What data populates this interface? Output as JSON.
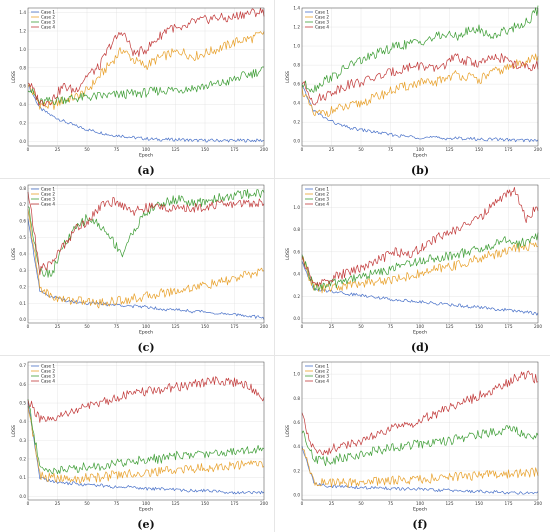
{
  "series_names": [
    "Case 1",
    "Case 2",
    "Case 3",
    "Case 4"
  ],
  "colors": [
    "#4a72c9",
    "#e8a12c",
    "#3f9e37",
    "#c23b3b"
  ],
  "xlabel": "Epoch",
  "ylabel": "LOSS",
  "chart_data": [
    {
      "type": "line",
      "caption": "(a)",
      "xlabel": "Epoch",
      "ylabel": "LOSS",
      "xlim": [
        0,
        200
      ],
      "ylim": [
        -0.05,
        1.45
      ],
      "xticks": [
        0,
        25,
        50,
        75,
        100,
        125,
        150,
        175,
        200
      ],
      "yticks": [
        0.0,
        0.2,
        0.4,
        0.6,
        0.8,
        1.0,
        1.2,
        1.4
      ],
      "grid": true,
      "legend": "top-left",
      "x": [
        0,
        10,
        20,
        30,
        40,
        50,
        60,
        70,
        80,
        90,
        100,
        110,
        120,
        130,
        140,
        150,
        160,
        170,
        180,
        190,
        200
      ],
      "series": [
        {
          "name": "Case 1",
          "values": [
            0.62,
            0.36,
            0.28,
            0.22,
            0.17,
            0.13,
            0.1,
            0.07,
            0.06,
            0.04,
            0.03,
            0.02,
            0.02,
            0.02,
            0.01,
            0.01,
            0.01,
            0.01,
            0.01,
            0.01,
            0.01
          ]
        },
        {
          "name": "Case 2",
          "values": [
            0.62,
            0.4,
            0.38,
            0.45,
            0.48,
            0.55,
            0.7,
            0.85,
            1.0,
            0.88,
            0.82,
            0.9,
            0.95,
            0.98,
            0.92,
            0.96,
            1.0,
            1.05,
            1.1,
            1.12,
            1.18
          ]
        },
        {
          "name": "Case 3",
          "values": [
            0.6,
            0.42,
            0.44,
            0.46,
            0.47,
            0.48,
            0.49,
            0.5,
            0.51,
            0.52,
            0.53,
            0.55,
            0.56,
            0.57,
            0.58,
            0.6,
            0.62,
            0.65,
            0.7,
            0.74,
            0.78
          ]
        },
        {
          "name": "Case 4",
          "values": [
            0.66,
            0.42,
            0.45,
            0.6,
            0.55,
            0.72,
            0.8,
            1.05,
            1.2,
            0.95,
            1.0,
            1.12,
            1.25,
            1.2,
            1.3,
            1.32,
            1.35,
            1.33,
            1.38,
            1.4,
            1.41
          ]
        }
      ]
    },
    {
      "type": "line",
      "caption": "(b)",
      "xlabel": "Epoch",
      "ylabel": "LOSS",
      "xlim": [
        0,
        200
      ],
      "ylim": [
        -0.05,
        1.4
      ],
      "xticks": [
        0,
        25,
        50,
        75,
        100,
        125,
        150,
        175,
        200
      ],
      "yticks": [
        0.0,
        0.2,
        0.4,
        0.6,
        0.8,
        1.0,
        1.2,
        1.4
      ],
      "grid": true,
      "legend": "top-left",
      "x": [
        0,
        10,
        20,
        30,
        40,
        50,
        60,
        70,
        80,
        90,
        100,
        110,
        120,
        130,
        140,
        150,
        160,
        170,
        180,
        190,
        200
      ],
      "series": [
        {
          "name": "Case 1",
          "values": [
            0.58,
            0.32,
            0.24,
            0.18,
            0.14,
            0.12,
            0.1,
            0.08,
            0.06,
            0.05,
            0.04,
            0.04,
            0.03,
            0.03,
            0.03,
            0.02,
            0.02,
            0.02,
            0.01,
            0.01,
            0.01
          ]
        },
        {
          "name": "Case 2",
          "values": [
            0.55,
            0.28,
            0.3,
            0.34,
            0.36,
            0.4,
            0.45,
            0.5,
            0.55,
            0.58,
            0.62,
            0.6,
            0.66,
            0.7,
            0.68,
            0.64,
            0.72,
            0.75,
            0.8,
            0.85,
            0.88
          ]
        },
        {
          "name": "Case 3",
          "values": [
            0.6,
            0.55,
            0.65,
            0.7,
            0.8,
            0.85,
            0.9,
            0.95,
            1.0,
            1.02,
            1.05,
            1.08,
            1.12,
            1.1,
            1.15,
            1.18,
            1.1,
            1.15,
            1.2,
            1.25,
            1.38
          ]
        },
        {
          "name": "Case 4",
          "values": [
            0.62,
            0.42,
            0.48,
            0.55,
            0.6,
            0.62,
            0.66,
            0.7,
            0.74,
            0.78,
            0.8,
            0.75,
            0.8,
            0.88,
            0.84,
            0.82,
            0.86,
            0.88,
            0.8,
            0.78,
            0.8
          ]
        }
      ]
    },
    {
      "type": "line",
      "caption": "(c)",
      "xlabel": "Epoch",
      "ylabel": "LOSS",
      "xlim": [
        0,
        200
      ],
      "ylim": [
        -0.02,
        0.82
      ],
      "xticks": [
        0,
        25,
        50,
        75,
        100,
        125,
        150,
        175,
        200
      ],
      "yticks": [
        0.0,
        0.1,
        0.2,
        0.3,
        0.4,
        0.5,
        0.6,
        0.7,
        0.8
      ],
      "grid": true,
      "legend": "top-left",
      "x": [
        0,
        10,
        20,
        30,
        40,
        50,
        60,
        70,
        80,
        90,
        100,
        110,
        120,
        130,
        140,
        150,
        160,
        170,
        180,
        190,
        200
      ],
      "series": [
        {
          "name": "Case 1",
          "values": [
            0.62,
            0.18,
            0.14,
            0.12,
            0.11,
            0.1,
            0.1,
            0.09,
            0.09,
            0.08,
            0.08,
            0.07,
            0.06,
            0.06,
            0.05,
            0.05,
            0.04,
            0.03,
            0.03,
            0.02,
            0.01
          ]
        },
        {
          "name": "Case 2",
          "values": [
            0.66,
            0.2,
            0.14,
            0.12,
            0.12,
            0.11,
            0.1,
            0.11,
            0.12,
            0.13,
            0.14,
            0.16,
            0.17,
            0.18,
            0.2,
            0.21,
            0.22,
            0.24,
            0.26,
            0.28,
            0.3
          ]
        },
        {
          "name": "Case 3",
          "values": [
            0.7,
            0.3,
            0.28,
            0.45,
            0.55,
            0.62,
            0.58,
            0.5,
            0.4,
            0.55,
            0.65,
            0.7,
            0.72,
            0.74,
            0.7,
            0.72,
            0.74,
            0.75,
            0.76,
            0.77,
            0.77
          ]
        },
        {
          "name": "Case 4",
          "values": [
            0.78,
            0.3,
            0.35,
            0.45,
            0.55,
            0.6,
            0.68,
            0.72,
            0.7,
            0.66,
            0.68,
            0.69,
            0.68,
            0.67,
            0.68,
            0.69,
            0.7,
            0.7,
            0.71,
            0.71,
            0.72
          ]
        }
      ]
    },
    {
      "type": "line",
      "caption": "(d)",
      "xlabel": "Epoch",
      "ylabel": "LOSS",
      "xlim": [
        0,
        200
      ],
      "ylim": [
        -0.04,
        1.2
      ],
      "xticks": [
        0,
        25,
        50,
        75,
        100,
        125,
        150,
        175,
        200
      ],
      "yticks": [
        0.0,
        0.2,
        0.4,
        0.6,
        0.8,
        1.0
      ],
      "grid": true,
      "legend": "top-left",
      "x": [
        0,
        10,
        20,
        30,
        40,
        50,
        60,
        70,
        80,
        90,
        100,
        110,
        120,
        130,
        140,
        150,
        160,
        170,
        180,
        190,
        200
      ],
      "series": [
        {
          "name": "Case 1",
          "values": [
            0.52,
            0.26,
            0.25,
            0.24,
            0.22,
            0.21,
            0.2,
            0.18,
            0.17,
            0.16,
            0.15,
            0.14,
            0.13,
            0.12,
            0.11,
            0.1,
            0.09,
            0.08,
            0.07,
            0.06,
            0.04
          ]
        },
        {
          "name": "Case 2",
          "values": [
            0.54,
            0.28,
            0.27,
            0.28,
            0.3,
            0.32,
            0.33,
            0.34,
            0.36,
            0.38,
            0.4,
            0.43,
            0.46,
            0.48,
            0.5,
            0.54,
            0.57,
            0.6,
            0.63,
            0.65,
            0.66
          ]
        },
        {
          "name": "Case 3",
          "values": [
            0.55,
            0.29,
            0.3,
            0.32,
            0.36,
            0.38,
            0.4,
            0.43,
            0.46,
            0.5,
            0.52,
            0.54,
            0.56,
            0.57,
            0.6,
            0.62,
            0.64,
            0.72,
            0.66,
            0.7,
            0.74
          ]
        },
        {
          "name": "Case 4",
          "values": [
            0.55,
            0.3,
            0.34,
            0.38,
            0.42,
            0.46,
            0.5,
            0.55,
            0.6,
            0.58,
            0.62,
            0.7,
            0.75,
            0.8,
            0.85,
            0.9,
            1.0,
            1.1,
            1.15,
            0.9,
            1.0
          ]
        }
      ]
    },
    {
      "type": "line",
      "caption": "(e)",
      "xlabel": "Epoch",
      "ylabel": "LOSS",
      "xlim": [
        0,
        200
      ],
      "ylim": [
        -0.02,
        0.72
      ],
      "xticks": [
        0,
        25,
        50,
        75,
        100,
        125,
        150,
        175,
        200
      ],
      "yticks": [
        0.0,
        0.1,
        0.2,
        0.3,
        0.4,
        0.5,
        0.6,
        0.7
      ],
      "grid": true,
      "legend": "top-left",
      "x": [
        0,
        10,
        20,
        30,
        40,
        50,
        60,
        70,
        80,
        90,
        100,
        110,
        120,
        130,
        140,
        150,
        160,
        170,
        180,
        190,
        200
      ],
      "series": [
        {
          "name": "Case 1",
          "values": [
            0.5,
            0.1,
            0.08,
            0.07,
            0.07,
            0.06,
            0.06,
            0.05,
            0.05,
            0.05,
            0.04,
            0.04,
            0.04,
            0.03,
            0.03,
            0.03,
            0.03,
            0.02,
            0.02,
            0.02,
            0.02
          ]
        },
        {
          "name": "Case 2",
          "values": [
            0.5,
            0.11,
            0.1,
            0.09,
            0.09,
            0.1,
            0.1,
            0.11,
            0.12,
            0.12,
            0.13,
            0.13,
            0.14,
            0.14,
            0.15,
            0.15,
            0.16,
            0.16,
            0.17,
            0.17,
            0.18
          ]
        },
        {
          "name": "Case 3",
          "values": [
            0.52,
            0.15,
            0.14,
            0.14,
            0.15,
            0.16,
            0.16,
            0.17,
            0.18,
            0.19,
            0.2,
            0.2,
            0.21,
            0.22,
            0.22,
            0.23,
            0.23,
            0.24,
            0.25,
            0.25,
            0.26
          ]
        },
        {
          "name": "Case 4",
          "values": [
            0.52,
            0.41,
            0.4,
            0.44,
            0.46,
            0.48,
            0.5,
            0.52,
            0.54,
            0.55,
            0.56,
            0.57,
            0.58,
            0.59,
            0.6,
            0.61,
            0.62,
            0.62,
            0.6,
            0.58,
            0.52
          ]
        }
      ]
    },
    {
      "type": "line",
      "caption": "(f)",
      "xlabel": "Epoch",
      "ylabel": "LOSS",
      "xlim": [
        0,
        200
      ],
      "ylim": [
        -0.04,
        1.1
      ],
      "xticks": [
        0,
        25,
        50,
        75,
        100,
        125,
        150,
        175,
        200
      ],
      "yticks": [
        0.0,
        0.2,
        0.4,
        0.6,
        0.8,
        1.0
      ],
      "grid": true,
      "legend": "top-left",
      "x": [
        0,
        10,
        20,
        30,
        40,
        50,
        60,
        70,
        80,
        90,
        100,
        110,
        120,
        130,
        140,
        150,
        160,
        170,
        180,
        190,
        200
      ],
      "series": [
        {
          "name": "Case 1",
          "values": [
            0.4,
            0.1,
            0.08,
            0.07,
            0.07,
            0.06,
            0.06,
            0.06,
            0.05,
            0.05,
            0.05,
            0.04,
            0.04,
            0.04,
            0.03,
            0.03,
            0.03,
            0.02,
            0.02,
            0.02,
            0.02
          ]
        },
        {
          "name": "Case 2",
          "values": [
            0.4,
            0.11,
            0.1,
            0.1,
            0.1,
            0.11,
            0.11,
            0.12,
            0.12,
            0.13,
            0.13,
            0.14,
            0.14,
            0.15,
            0.16,
            0.16,
            0.17,
            0.17,
            0.18,
            0.18,
            0.19
          ]
        },
        {
          "name": "Case 3",
          "values": [
            0.55,
            0.3,
            0.28,
            0.3,
            0.32,
            0.34,
            0.36,
            0.38,
            0.4,
            0.41,
            0.42,
            0.43,
            0.44,
            0.46,
            0.48,
            0.5,
            0.52,
            0.54,
            0.56,
            0.48,
            0.5
          ]
        },
        {
          "name": "Case 4",
          "values": [
            0.65,
            0.38,
            0.36,
            0.4,
            0.42,
            0.44,
            0.48,
            0.52,
            0.56,
            0.58,
            0.62,
            0.66,
            0.7,
            0.74,
            0.78,
            0.82,
            0.86,
            0.9,
            0.96,
            1.0,
            0.95
          ]
        }
      ]
    }
  ]
}
